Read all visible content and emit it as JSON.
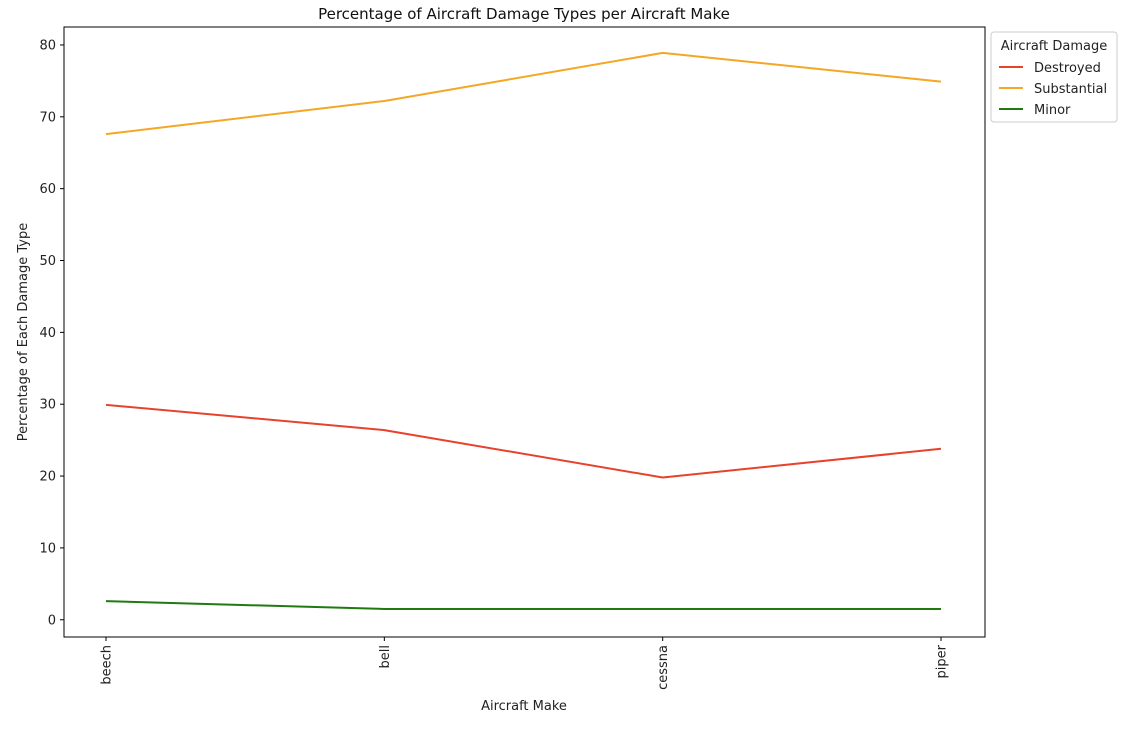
{
  "chart_data": {
    "type": "line",
    "title": "Percentage of Aircraft Damage Types per Aircraft Make",
    "xlabel": "Aircraft Make",
    "ylabel": "Percentage of Each Damage Type",
    "categories": [
      "beech",
      "bell",
      "cessna",
      "piper"
    ],
    "yticks": [
      "0",
      "10",
      "20",
      "30",
      "40",
      "50",
      "60",
      "70",
      "80"
    ],
    "ylim": [
      -2.4,
      82.5
    ],
    "grid": false,
    "legend": {
      "title": "Aircraft Damage",
      "placement": "outside-top-right"
    },
    "series": [
      {
        "name": "Destroyed",
        "color": "#e8412c",
        "values": [
          29.9,
          26.4,
          19.8,
          23.8
        ]
      },
      {
        "name": "Substantial",
        "color": "#f5a623",
        "values": [
          67.6,
          72.2,
          78.9,
          74.9
        ]
      },
      {
        "name": "Minor",
        "color": "#1f7a0f",
        "values": [
          2.6,
          1.5,
          1.5,
          1.5
        ]
      }
    ]
  }
}
